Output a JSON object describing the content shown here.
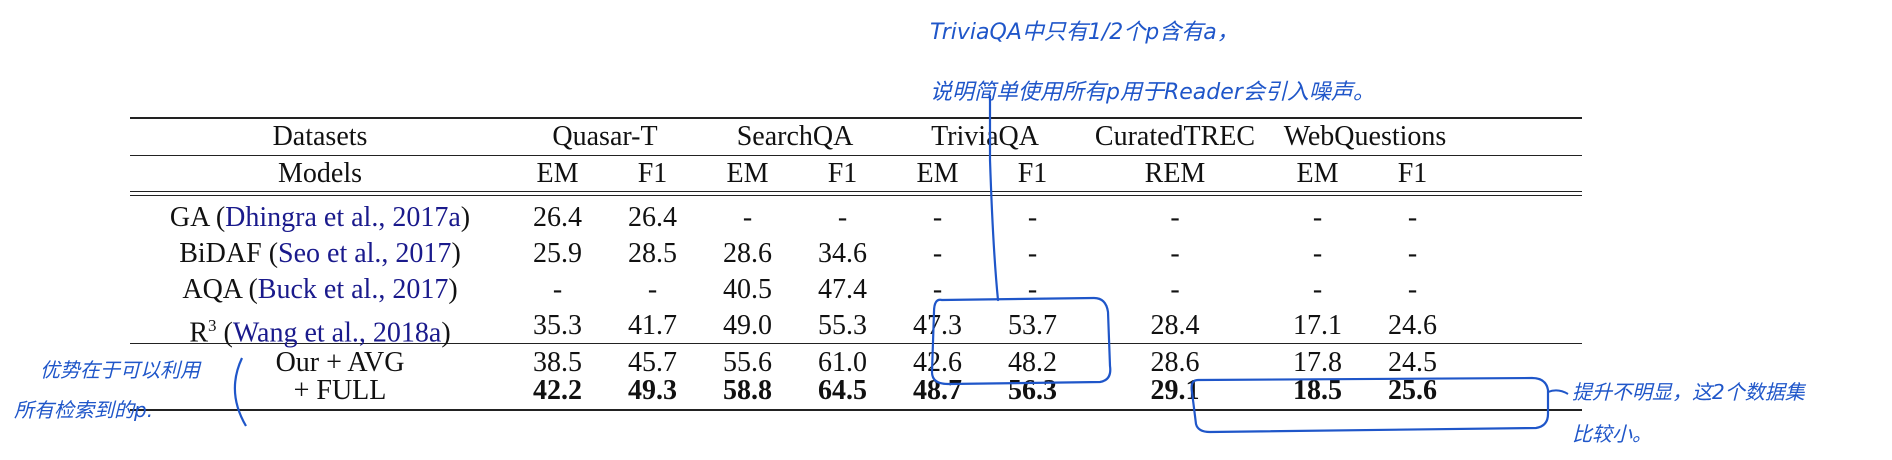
{
  "table": {
    "header1": {
      "label": "Datasets",
      "groups": [
        "Quasar-T",
        "SearchQA",
        "TriviaQA",
        "CuratedTREC",
        "WebQuestions"
      ]
    },
    "header2": {
      "label": "Models",
      "metrics": [
        "EM",
        "F1",
        "EM",
        "F1",
        "EM",
        "F1",
        "REM",
        "EM",
        "F1"
      ]
    },
    "rows": [
      {
        "model": "GA (",
        "cite": "Dhingra et al., 2017a",
        "close": ")",
        "values": [
          "26.4",
          "26.4",
          "-",
          "-",
          "-",
          "-",
          "-",
          "-",
          "-"
        ]
      },
      {
        "model": "BiDAF (",
        "cite": "Seo et al., 2017",
        "close": ")",
        "values": [
          "25.9",
          "28.5",
          "28.6",
          "34.6",
          "-",
          "-",
          "-",
          "-",
          "-"
        ]
      },
      {
        "model": "AQA (",
        "cite": "Buck et al., 2017",
        "close": ")",
        "values": [
          "-",
          "-",
          "40.5",
          "47.4",
          "-",
          "-",
          "-",
          "-",
          "-"
        ]
      },
      {
        "model": "R",
        "sup": "3",
        "pre_cite": " (",
        "cite": "Wang et al., 2018a",
        "close": ")",
        "values": [
          "35.3",
          "41.7",
          "49.0",
          "55.3",
          "47.3",
          "53.7",
          "28.4",
          "17.1",
          "24.6"
        ]
      }
    ],
    "ours": [
      {
        "model": "Our + AVG",
        "values": [
          "38.5",
          "45.7",
          "55.6",
          "61.0",
          "42.6",
          "48.2",
          "28.6",
          "17.8",
          "24.5"
        ]
      },
      {
        "model": "+ FULL",
        "values": [
          "42.2",
          "49.3",
          "58.8",
          "64.5",
          "48.7",
          "56.3",
          "29.1",
          "18.5",
          "25.6"
        ]
      }
    ]
  },
  "annotations": {
    "top_line1": "TriviaQA中只有1/2个p含有a，",
    "top_line2": "说明简单使用所有p用于Reader会引入噪声。",
    "left_line1": "优势在于可以利用",
    "left_line2": "所有检索到的p.",
    "right_line1": "提升不明显，这2个数据集",
    "right_line2": "比较小。"
  },
  "colors": {
    "ink": "#1f56c9",
    "cite": "#1a1a8c",
    "rule": "#222222"
  }
}
